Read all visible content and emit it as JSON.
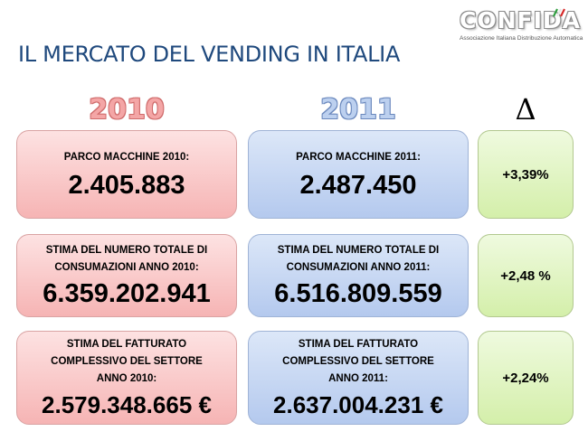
{
  "title": "IL MERCATO DEL VENDING IN ITALIA",
  "logo": {
    "name": "CONFIDA",
    "subtitle": "Associazione Italiana Distribuzione Automatica"
  },
  "columns": {
    "year_2010": "2010",
    "year_2011": "2011",
    "delta_symbol": "Δ"
  },
  "rows": [
    {
      "label_2010": "PARCO MACCHINE 2010:",
      "value_2010": "2.405.883",
      "label_2011": "PARCO MACCHINE 2011:",
      "value_2011": "2.487.450",
      "delta": "+3,39%"
    },
    {
      "label_2010": "STIMA DEL NUMERO TOTALE DI CONSUMAZIONI ANNO 2010:",
      "value_2010": "6.359.202.941",
      "label_2011": "STIMA DEL NUMERO TOTALE DI CONSUMAZIONI ANNO 2011:",
      "value_2011": "6.516.809.559",
      "delta": "+2,48 %"
    },
    {
      "label_2010": "STIMA DEL FATTURATO COMPLESSIVO DEL SETTORE ANNO 2010:",
      "value_2010": "2.579.348.665 €",
      "label_2011": "STIMA DEL FATTURATO COMPLESSIVO DEL SETTORE ANNO 2011:",
      "value_2011": "2.637.004.231 €",
      "delta": "+2,24%"
    }
  ],
  "colors": {
    "title": "#1f497d",
    "red_box": "#f6b4b4",
    "blue_box": "#b4c9ee",
    "green_box": "#d4efaa"
  }
}
